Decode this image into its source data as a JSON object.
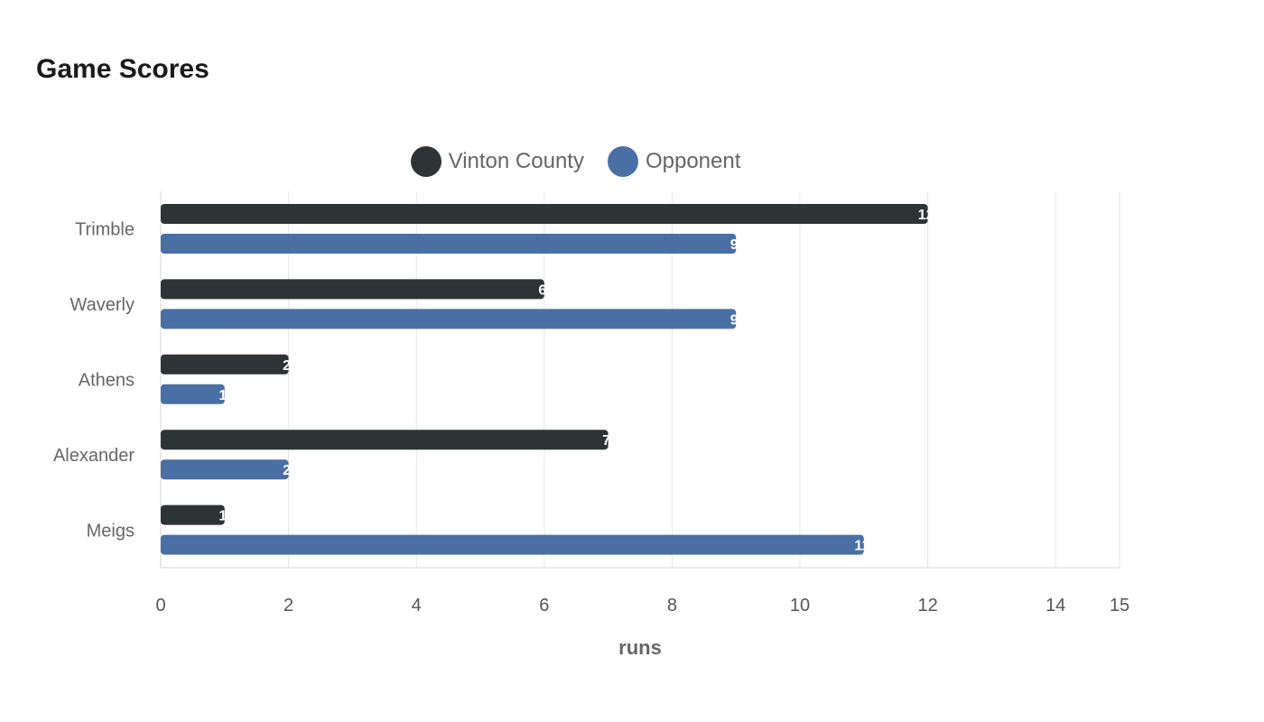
{
  "title": "Game Scores",
  "chart_data": {
    "type": "bar",
    "orientation": "horizontal",
    "title": "Game Scores",
    "xlabel": "runs",
    "ylabel": "",
    "categories": [
      "Trimble",
      "Waverly",
      "Athens",
      "Alexander",
      "Meigs"
    ],
    "series": [
      {
        "name": "Vinton County",
        "color": "#2d3436",
        "values": [
          12,
          6,
          2,
          7,
          1
        ]
      },
      {
        "name": "Opponent",
        "color": "#4a6fa5",
        "values": [
          9,
          9,
          1,
          2,
          11
        ]
      }
    ],
    "xlim": [
      0,
      15
    ],
    "xticks": [
      "0",
      "2",
      "4",
      "6",
      "8",
      "10",
      "12",
      "14",
      "15"
    ],
    "grid": true,
    "legend_position": "top-center"
  }
}
